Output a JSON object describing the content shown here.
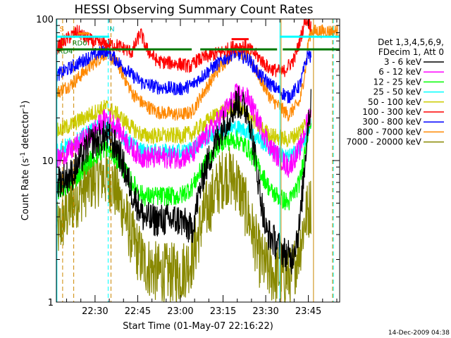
{
  "chart_data": {
    "type": "line",
    "title": "HESSI Observing Summary Count Rates",
    "xlabel": "Start Time (01-May-07 22:16:22)",
    "ylabel": "Count Rate (s",
    "ylabel_sup": "-1",
    "ylabel_rest": " detector",
    "ylabel_sup2": "-1",
    "ylabel_end": ")",
    "yscale": "log",
    "ylim": [
      1,
      100
    ],
    "y_ticks": [
      "1",
      "10",
      "100"
    ],
    "x_ticks": [
      "22:30",
      "22:45",
      "23:00",
      "23:15",
      "23:30",
      "23:45"
    ],
    "x_tick_minutes": [
      30,
      45,
      60,
      75,
      90,
      105
    ],
    "xlim_minutes": [
      16.4,
      116
    ],
    "footer": "14-Dec-2009 04:38",
    "legend_header": [
      "Det 1,3,4,5,6,9,",
      "FDecim 1, Att 0"
    ],
    "legend": [
      {
        "label": "3 - 6 keV",
        "color": "#000000"
      },
      {
        "label": "6 - 12 keV",
        "color": "#ff00ff"
      },
      {
        "label": "12 - 25 keV",
        "color": "#00ff00"
      },
      {
        "label": "25 - 50 keV",
        "color": "#00ffff"
      },
      {
        "label": "50 - 100 keV",
        "color": "#cccc00"
      },
      {
        "label": "100 - 300 keV",
        "color": "#ff0000"
      },
      {
        "label": "300 - 800 keV",
        "color": "#0000ff"
      },
      {
        "label": "800 - 7000 keV",
        "color": "#ff8800"
      },
      {
        "label": "7000 - 20000 keV",
        "color": "#888800"
      }
    ],
    "flags": [
      {
        "label": "S",
        "color": "#ff8800",
        "minute": 17.5,
        "y": 82
      },
      {
        "label": "N",
        "color": "#00cccc",
        "minute": 35,
        "y": 82
      },
      {
        "label": "RD0",
        "color": "#007700",
        "minute": 22,
        "y": 65
      },
      {
        "label": "RD4",
        "color": "#007700",
        "minute": 17,
        "y": 57
      }
    ],
    "series": [
      {
        "name": "3 - 6 keV",
        "color": "#000000",
        "noise": 0.12,
        "points": [
          [
            16.4,
            7
          ],
          [
            22,
            8
          ],
          [
            28,
            13
          ],
          [
            34,
            15
          ],
          [
            38,
            12
          ],
          [
            43,
            6
          ],
          [
            47,
            4
          ],
          [
            50,
            3.8
          ],
          [
            60,
            3.8
          ],
          [
            64,
            3.2
          ],
          [
            68,
            8
          ],
          [
            74,
            16
          ],
          [
            80,
            26
          ],
          [
            84,
            22
          ],
          [
            88,
            6
          ],
          [
            90,
            3.2
          ],
          [
            95,
            2.4
          ],
          [
            99,
            2
          ],
          [
            102,
            3.5
          ],
          [
            105,
            20
          ],
          [
            106,
            25
          ]
        ]
      },
      {
        "name": "6 - 12 keV",
        "color": "#ff00ff",
        "noise": 0.08,
        "points": [
          [
            16.4,
            10
          ],
          [
            22,
            12
          ],
          [
            28,
            15
          ],
          [
            34,
            20
          ],
          [
            38,
            17
          ],
          [
            43,
            12
          ],
          [
            47,
            10.5
          ],
          [
            60,
            10.5
          ],
          [
            64,
            11
          ],
          [
            68,
            14
          ],
          [
            74,
            20
          ],
          [
            80,
            30
          ],
          [
            84,
            27
          ],
          [
            88,
            18
          ],
          [
            92,
            12
          ],
          [
            98,
            9
          ],
          [
            102,
            12
          ],
          [
            105,
            20
          ],
          [
            106,
            22
          ]
        ]
      },
      {
        "name": "12 - 25 keV",
        "color": "#00ff00",
        "noise": 0.07,
        "points": [
          [
            16.4,
            6
          ],
          [
            22,
            7
          ],
          [
            28,
            10
          ],
          [
            34,
            12.5
          ],
          [
            38,
            10
          ],
          [
            43,
            7
          ],
          [
            47,
            5.6
          ],
          [
            60,
            5.6
          ],
          [
            64,
            6.5
          ],
          [
            68,
            9
          ],
          [
            74,
            13.5
          ],
          [
            80,
            14
          ],
          [
            84,
            12
          ],
          [
            88,
            8.5
          ],
          [
            92,
            6
          ],
          [
            98,
            5
          ],
          [
            102,
            7
          ],
          [
            105,
            17
          ],
          [
            106,
            20
          ]
        ]
      },
      {
        "name": "25 - 50 keV",
        "color": "#00ffff",
        "noise": 0.06,
        "points": [
          [
            16.4,
            12
          ],
          [
            22,
            13
          ],
          [
            28,
            16
          ],
          [
            34,
            18
          ],
          [
            38,
            16
          ],
          [
            43,
            13
          ],
          [
            47,
            11.5
          ],
          [
            60,
            11.5
          ],
          [
            64,
            12
          ],
          [
            68,
            14
          ],
          [
            74,
            17
          ],
          [
            80,
            17
          ],
          [
            84,
            16
          ],
          [
            88,
            14
          ],
          [
            92,
            12
          ],
          [
            98,
            10.5
          ],
          [
            102,
            12
          ],
          [
            105,
            16
          ],
          [
            106,
            18
          ]
        ]
      },
      {
        "name": "50 - 100 keV",
        "color": "#cccc00",
        "noise": 0.06,
        "points": [
          [
            16.4,
            16
          ],
          [
            22,
            18
          ],
          [
            28,
            21
          ],
          [
            34,
            24
          ],
          [
            38,
            21
          ],
          [
            43,
            17
          ],
          [
            47,
            15
          ],
          [
            60,
            15
          ],
          [
            64,
            15.5
          ],
          [
            68,
            18
          ],
          [
            74,
            22
          ],
          [
            80,
            24
          ],
          [
            84,
            21
          ],
          [
            88,
            17
          ],
          [
            92,
            15
          ],
          [
            98,
            14
          ],
          [
            102,
            16
          ],
          [
            105,
            20
          ],
          [
            106,
            22
          ]
        ]
      },
      {
        "name": "100 - 300 keV",
        "color": "#ff0000",
        "noise": 0.05,
        "points": [
          [
            16.4,
            62
          ],
          [
            20,
            72
          ],
          [
            24,
            82
          ],
          [
            26,
            75
          ],
          [
            30,
            68
          ],
          [
            35,
            66
          ],
          [
            38,
            65
          ],
          [
            43,
            58
          ],
          [
            46,
            80
          ],
          [
            48,
            62
          ],
          [
            52,
            50
          ],
          [
            60,
            48
          ],
          [
            64,
            46
          ],
          [
            65,
            50
          ],
          [
            69,
            54
          ],
          [
            74,
            58
          ],
          [
            79,
            64
          ],
          [
            83,
            64
          ],
          [
            87,
            55
          ],
          [
            91,
            45
          ],
          [
            96,
            42
          ],
          [
            100,
            52
          ],
          [
            102,
            70
          ],
          [
            104,
            100
          ],
          [
            106,
            90
          ]
        ]
      },
      {
        "name": "300 - 800 keV",
        "color": "#0000ff",
        "noise": 0.05,
        "points": [
          [
            16.4,
            40
          ],
          [
            22,
            46
          ],
          [
            28,
            54
          ],
          [
            34,
            60
          ],
          [
            38,
            50
          ],
          [
            43,
            40
          ],
          [
            47,
            35
          ],
          [
            52,
            33
          ],
          [
            60,
            32
          ],
          [
            64,
            34
          ],
          [
            68,
            40
          ],
          [
            74,
            50
          ],
          [
            79,
            58
          ],
          [
            84,
            52
          ],
          [
            88,
            40
          ],
          [
            92,
            34
          ],
          [
            98,
            28
          ],
          [
            102,
            34
          ],
          [
            105,
            58
          ],
          [
            106,
            52
          ]
        ]
      },
      {
        "name": "800 - 7000 keV",
        "color": "#ff8800",
        "noise": 0.05,
        "points": [
          [
            16.4,
            30
          ],
          [
            22,
            35
          ],
          [
            28,
            46
          ],
          [
            34,
            58
          ],
          [
            38,
            48
          ],
          [
            43,
            30
          ],
          [
            47,
            25
          ],
          [
            52,
            22
          ],
          [
            60,
            21
          ],
          [
            64,
            22
          ],
          [
            68,
            30
          ],
          [
            74,
            46
          ],
          [
            79,
            60
          ],
          [
            84,
            55
          ],
          [
            88,
            38
          ],
          [
            92,
            27
          ],
          [
            98,
            21
          ],
          [
            102,
            26
          ],
          [
            104,
            45
          ],
          [
            105,
            70
          ],
          [
            106,
            82
          ],
          [
            116,
            82
          ]
        ]
      },
      {
        "name": "7000 - 20000 keV",
        "color": "#888800",
        "noise": 0.22,
        "points": [
          [
            16.4,
            3
          ],
          [
            22,
            5
          ],
          [
            28,
            7
          ],
          [
            32,
            8
          ],
          [
            36,
            7
          ],
          [
            40,
            4.5
          ],
          [
            43,
            2.8
          ],
          [
            47,
            1.9
          ],
          [
            52,
            1.6
          ],
          [
            60,
            1.6
          ],
          [
            64,
            2
          ],
          [
            68,
            4
          ],
          [
            74,
            7
          ],
          [
            76,
            8
          ],
          [
            80,
            7
          ],
          [
            84,
            4
          ],
          [
            88,
            2
          ],
          [
            92,
            1.6
          ],
          [
            99,
            1.5
          ],
          [
            102,
            2.5
          ],
          [
            104,
            4
          ],
          [
            106,
            5
          ]
        ]
      }
    ],
    "vlines": [
      {
        "minute": 16.6,
        "color": "#00ffff",
        "dashed": false
      },
      {
        "minute": 18.6,
        "color": "#cc8800",
        "dashed": true
      },
      {
        "minute": 22.5,
        "color": "#cc8800",
        "dashed": true
      },
      {
        "minute": 34.6,
        "color": "#00ffff",
        "dashed": true
      },
      {
        "minute": 35.6,
        "color": "#cc8800",
        "dashed": true
      },
      {
        "minute": 95,
        "color": "#00ffff",
        "dashed": false
      },
      {
        "minute": 95.4,
        "color": "#cc8800",
        "dashed": false
      },
      {
        "minute": 106.8,
        "color": "#cc8800",
        "dashed": false
      },
      {
        "minute": 113.5,
        "color": "#cc8800",
        "dashed": true
      },
      {
        "minute": 113.8,
        "color": "#00ffff",
        "dashed": true
      }
    ],
    "bars": [
      {
        "color": "#00ffff",
        "y": 75,
        "ranges": [
          [
            16.6,
            35
          ],
          [
            95,
            116
          ]
        ]
      },
      {
        "color": "#007700",
        "y": 61,
        "ranges": [
          [
            16.6,
            44.5
          ],
          [
            44.5,
            64
          ],
          [
            67,
            94
          ],
          [
            96,
            116
          ]
        ]
      },
      {
        "color": "#ff8800",
        "y": 79,
        "ranges": [
          [
            24,
            28
          ]
        ]
      },
      {
        "color": "#ff0000",
        "y": 72,
        "ranges": [
          [
            78,
            84
          ]
        ]
      }
    ]
  }
}
